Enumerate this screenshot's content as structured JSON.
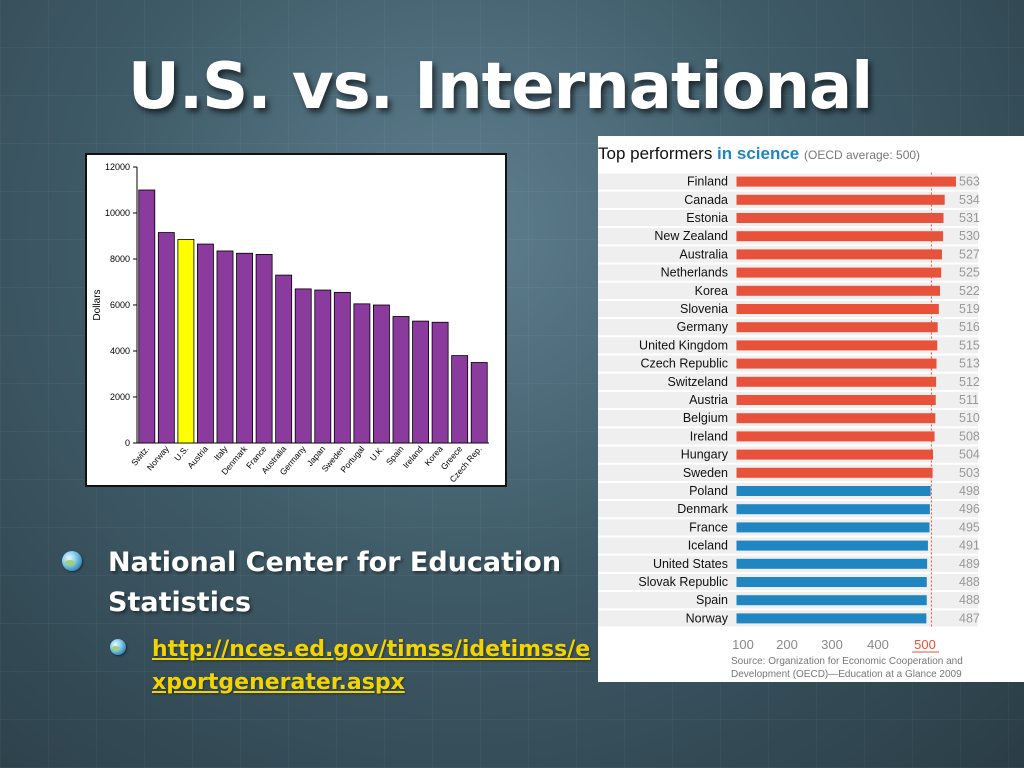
{
  "slide": {
    "title": "U.S. vs. International"
  },
  "bullets": {
    "main": "National Center for Education Statistics",
    "link": "http://nces.ed.gov/timss/idetimss/exportgenerater.aspx"
  },
  "chart_data": [
    {
      "type": "bar",
      "title": "",
      "xlabel": "",
      "ylabel": "Dollars",
      "ylim": [
        0,
        12000
      ],
      "yticks": [
        0,
        2000,
        4000,
        6000,
        8000,
        10000,
        12000
      ],
      "ytick_labels": [
        "0",
        "2000",
        "4000",
        "6000",
        "8000",
        "10000",
        "12000"
      ],
      "grid": false,
      "categories": [
        "Switz.",
        "Norway",
        "U.S.",
        "Austria",
        "Italy",
        "Denmark",
        "France",
        "Australia",
        "Germany",
        "Japan",
        "Sweden",
        "Portugal",
        "U.K.",
        "Spain",
        "Ireland",
        "Korea",
        "Greece",
        "Czech Rep."
      ],
      "values": [
        11000,
        9150,
        8850,
        8650,
        8350,
        8250,
        8200,
        7300,
        6700,
        6650,
        6550,
        6050,
        6000,
        5500,
        5300,
        5250,
        3800,
        3500
      ],
      "colors": {
        "default": "#8b3a9e",
        "highlight": "#ffff00"
      },
      "highlight_category": "U.S."
    },
    {
      "type": "bar",
      "orientation": "horizontal",
      "title": "Top performers",
      "title_emphasis": "in science",
      "subtitle": "(OECD average: 500)",
      "xticks": [
        100,
        200,
        300,
        400,
        500
      ],
      "reference_line": 500,
      "categories": [
        "Finland",
        "Canada",
        "Estonia",
        "New Zealand",
        "Australia",
        "Netherlands",
        "Korea",
        "Slovenia",
        "Germany",
        "United Kingdom",
        "Czech Republic",
        "Switzeland",
        "Austria",
        "Belgium",
        "Ireland",
        "Hungary",
        "Sweden",
        "Poland",
        "Denmark",
        "France",
        "Iceland",
        "United States",
        "Slovak Republic",
        "Spain",
        "Norway"
      ],
      "values": [
        563,
        534,
        531,
        530,
        527,
        525,
        522,
        519,
        516,
        515,
        513,
        512,
        511,
        510,
        508,
        504,
        503,
        498,
        496,
        495,
        491,
        489,
        488,
        488,
        487
      ],
      "colors": {
        "above_average": "#e9523a",
        "below_average": "#1f86c2",
        "title_emphasis": "#1f86c2",
        "reference_line": "#e9523a"
      },
      "source": "Source: Organization for Economic Cooperation and Development (OECD)—Education at a Glance 2009"
    }
  ]
}
